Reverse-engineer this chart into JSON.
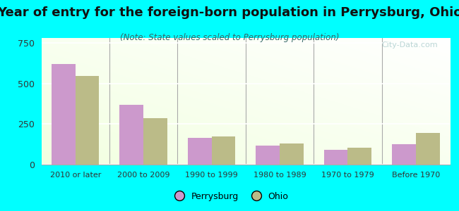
{
  "title": "Year of entry for the foreign-born population in Perrysburg, Ohio",
  "subtitle": "(Note: State values scaled to Perrysburg population)",
  "categories": [
    "2010 or later",
    "2000 to 2009",
    "1990 to 1999",
    "1980 to 1989",
    "1970 to 1979",
    "Before 1970"
  ],
  "perrysburg_values": [
    620,
    370,
    165,
    115,
    90,
    125
  ],
  "ohio_values": [
    545,
    285,
    175,
    130,
    105,
    195
  ],
  "perrysburg_color": "#cc99cc",
  "ohio_color": "#bbbb88",
  "ylim": [
    0,
    780
  ],
  "yticks": [
    0,
    250,
    500,
    750
  ],
  "background_color": "#00ffff",
  "bar_width": 0.35,
  "title_fontsize": 13,
  "subtitle_fontsize": 8.5,
  "watermark": "City-Data.com"
}
